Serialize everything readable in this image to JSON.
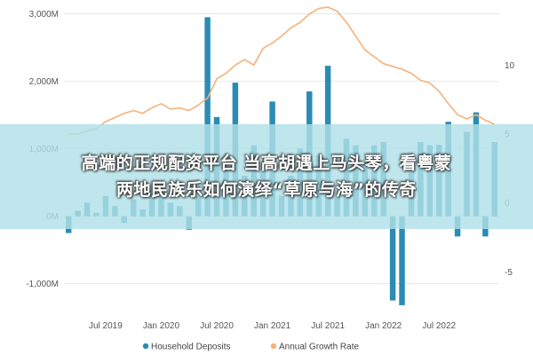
{
  "chart_data": {
    "type": "bar",
    "y_left_ticks": [
      "3,000M",
      "2,000M",
      "1,000M",
      "0M",
      "-1,000M"
    ],
    "y_left_tick_values": [
      3000,
      2000,
      1000,
      0,
      -1000
    ],
    "y_left_range": [
      -1400,
      3100
    ],
    "y_right_ticks": [
      "10",
      "5",
      "0",
      "-5"
    ],
    "y_right_tick_values": [
      10,
      5,
      0,
      -5
    ],
    "y_right_range": [
      -7.8,
      14.2
    ],
    "x_ticks": [
      "Jul 2019",
      "Jan 2020",
      "Jul 2020",
      "Jan 2021",
      "Jul 2021",
      "Jan 2022",
      "Jul 2022"
    ],
    "grid": true,
    "legend_position": "bottom",
    "series": [
      {
        "name": "Household Deposits",
        "type": "bar",
        "color": "#2b8cb3",
        "values": [
          -250,
          80,
          200,
          50,
          300,
          150,
          -100,
          250,
          100,
          400,
          300,
          200,
          150,
          -200,
          300,
          2950,
          1470,
          800,
          1980,
          600,
          1050,
          700,
          1700,
          300,
          600,
          1000,
          1850,
          900,
          2230,
          300,
          1150,
          1050,
          800,
          1050,
          1100,
          -1250,
          -1320,
          800,
          1100,
          1050,
          1060,
          1400,
          -300,
          1250,
          1540,
          -300,
          1100
        ]
      },
      {
        "name": "Annual Growth Rate",
        "type": "line",
        "color": "#f5b27a",
        "values": [
          5.0,
          5.0,
          5.2,
          5.4,
          5.9,
          6.2,
          6.5,
          6.7,
          6.5,
          6.9,
          7.2,
          6.8,
          6.9,
          6.7,
          7.1,
          7.6,
          9.0,
          9.4,
          10.0,
          10.4,
          10.0,
          11.2,
          11.6,
          12.1,
          12.7,
          13.1,
          13.7,
          14.1,
          14.2,
          13.9,
          13.1,
          12.1,
          11.1,
          10.6,
          10.1,
          9.9,
          9.7,
          9.4,
          8.9,
          8.7,
          8.1,
          7.2,
          6.4,
          6.1,
          6.4,
          6.0,
          5.7
        ]
      }
    ]
  },
  "overlay": {
    "line1": "高端的正规配资平台 当高胡遇上马头琴，看粤蒙",
    "line2": "两地民族乐如何演绎“草原与海”的传奇"
  },
  "colors": {
    "bar": "#2b8cb3",
    "line": "#f5b27a",
    "grid": "#e6e6e6",
    "overlay_band": "#b0e0e8"
  }
}
